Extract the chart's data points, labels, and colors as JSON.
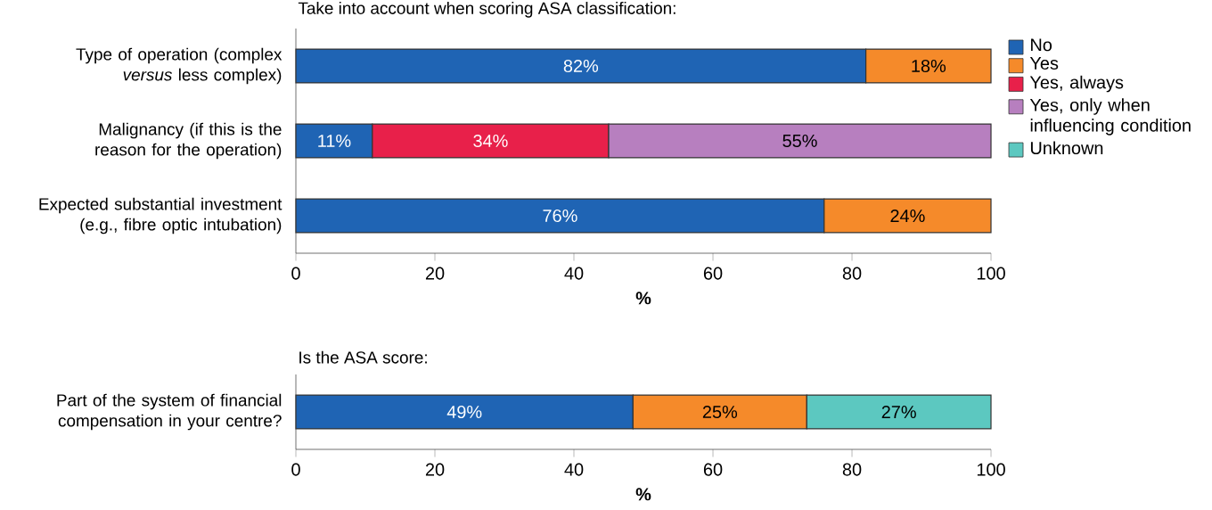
{
  "chart_data": [
    {
      "type": "bar",
      "orientation": "horizontal",
      "stacked": true,
      "title": "Take into account when scoring ASA classification:",
      "xlabel": "%",
      "categories": [
        "Type of operation (complex *versus* less complex)",
        "Malignancy (if this is the reason for the operation)",
        "Expected substantial investment (e.g., fibre optic intubation)"
      ],
      "xlim": [
        0,
        100
      ],
      "xticks": [
        0,
        20,
        40,
        60,
        80,
        100
      ],
      "legend": "right",
      "series": [
        {
          "name": "No",
          "color": "#1f64b4",
          "values": [
            82,
            11,
            76
          ],
          "value_labels": [
            "82%",
            "11%",
            "76%"
          ]
        },
        {
          "name": "Yes",
          "color": "#f58a2a",
          "values": [
            18,
            null,
            24
          ],
          "value_labels": [
            "18%",
            null,
            "24%"
          ]
        },
        {
          "name": "Yes, always",
          "color": "#e8204a",
          "values": [
            null,
            34,
            null
          ],
          "value_labels": [
            null,
            "34%",
            null
          ]
        },
        {
          "name": "Yes, only when influencing condition",
          "color": "#b77fbf",
          "values": [
            null,
            55,
            null
          ],
          "value_labels": [
            null,
            "55%",
            null
          ]
        },
        {
          "name": "Unknown",
          "color": "#5cc8c0",
          "values": [
            null,
            null,
            null
          ]
        }
      ]
    },
    {
      "type": "bar",
      "orientation": "horizontal",
      "stacked": true,
      "title": "Is the ASA score:",
      "xlabel": "%",
      "categories": [
        "Part of the system of financial compensation in your centre?"
      ],
      "xlim": [
        0,
        100
      ],
      "xticks": [
        0,
        20,
        40,
        60,
        80,
        100
      ],
      "series": [
        {
          "color": "#1f64b4",
          "values": [
            48.5
          ],
          "value_labels": [
            "49%"
          ]
        },
        {
          "color": "#f58a2a",
          "values": [
            25
          ],
          "value_labels": [
            "25%"
          ]
        },
        {
          "color": "#5cc8c0",
          "values": [
            26.5
          ],
          "value_labels": [
            "27%"
          ]
        }
      ]
    }
  ]
}
